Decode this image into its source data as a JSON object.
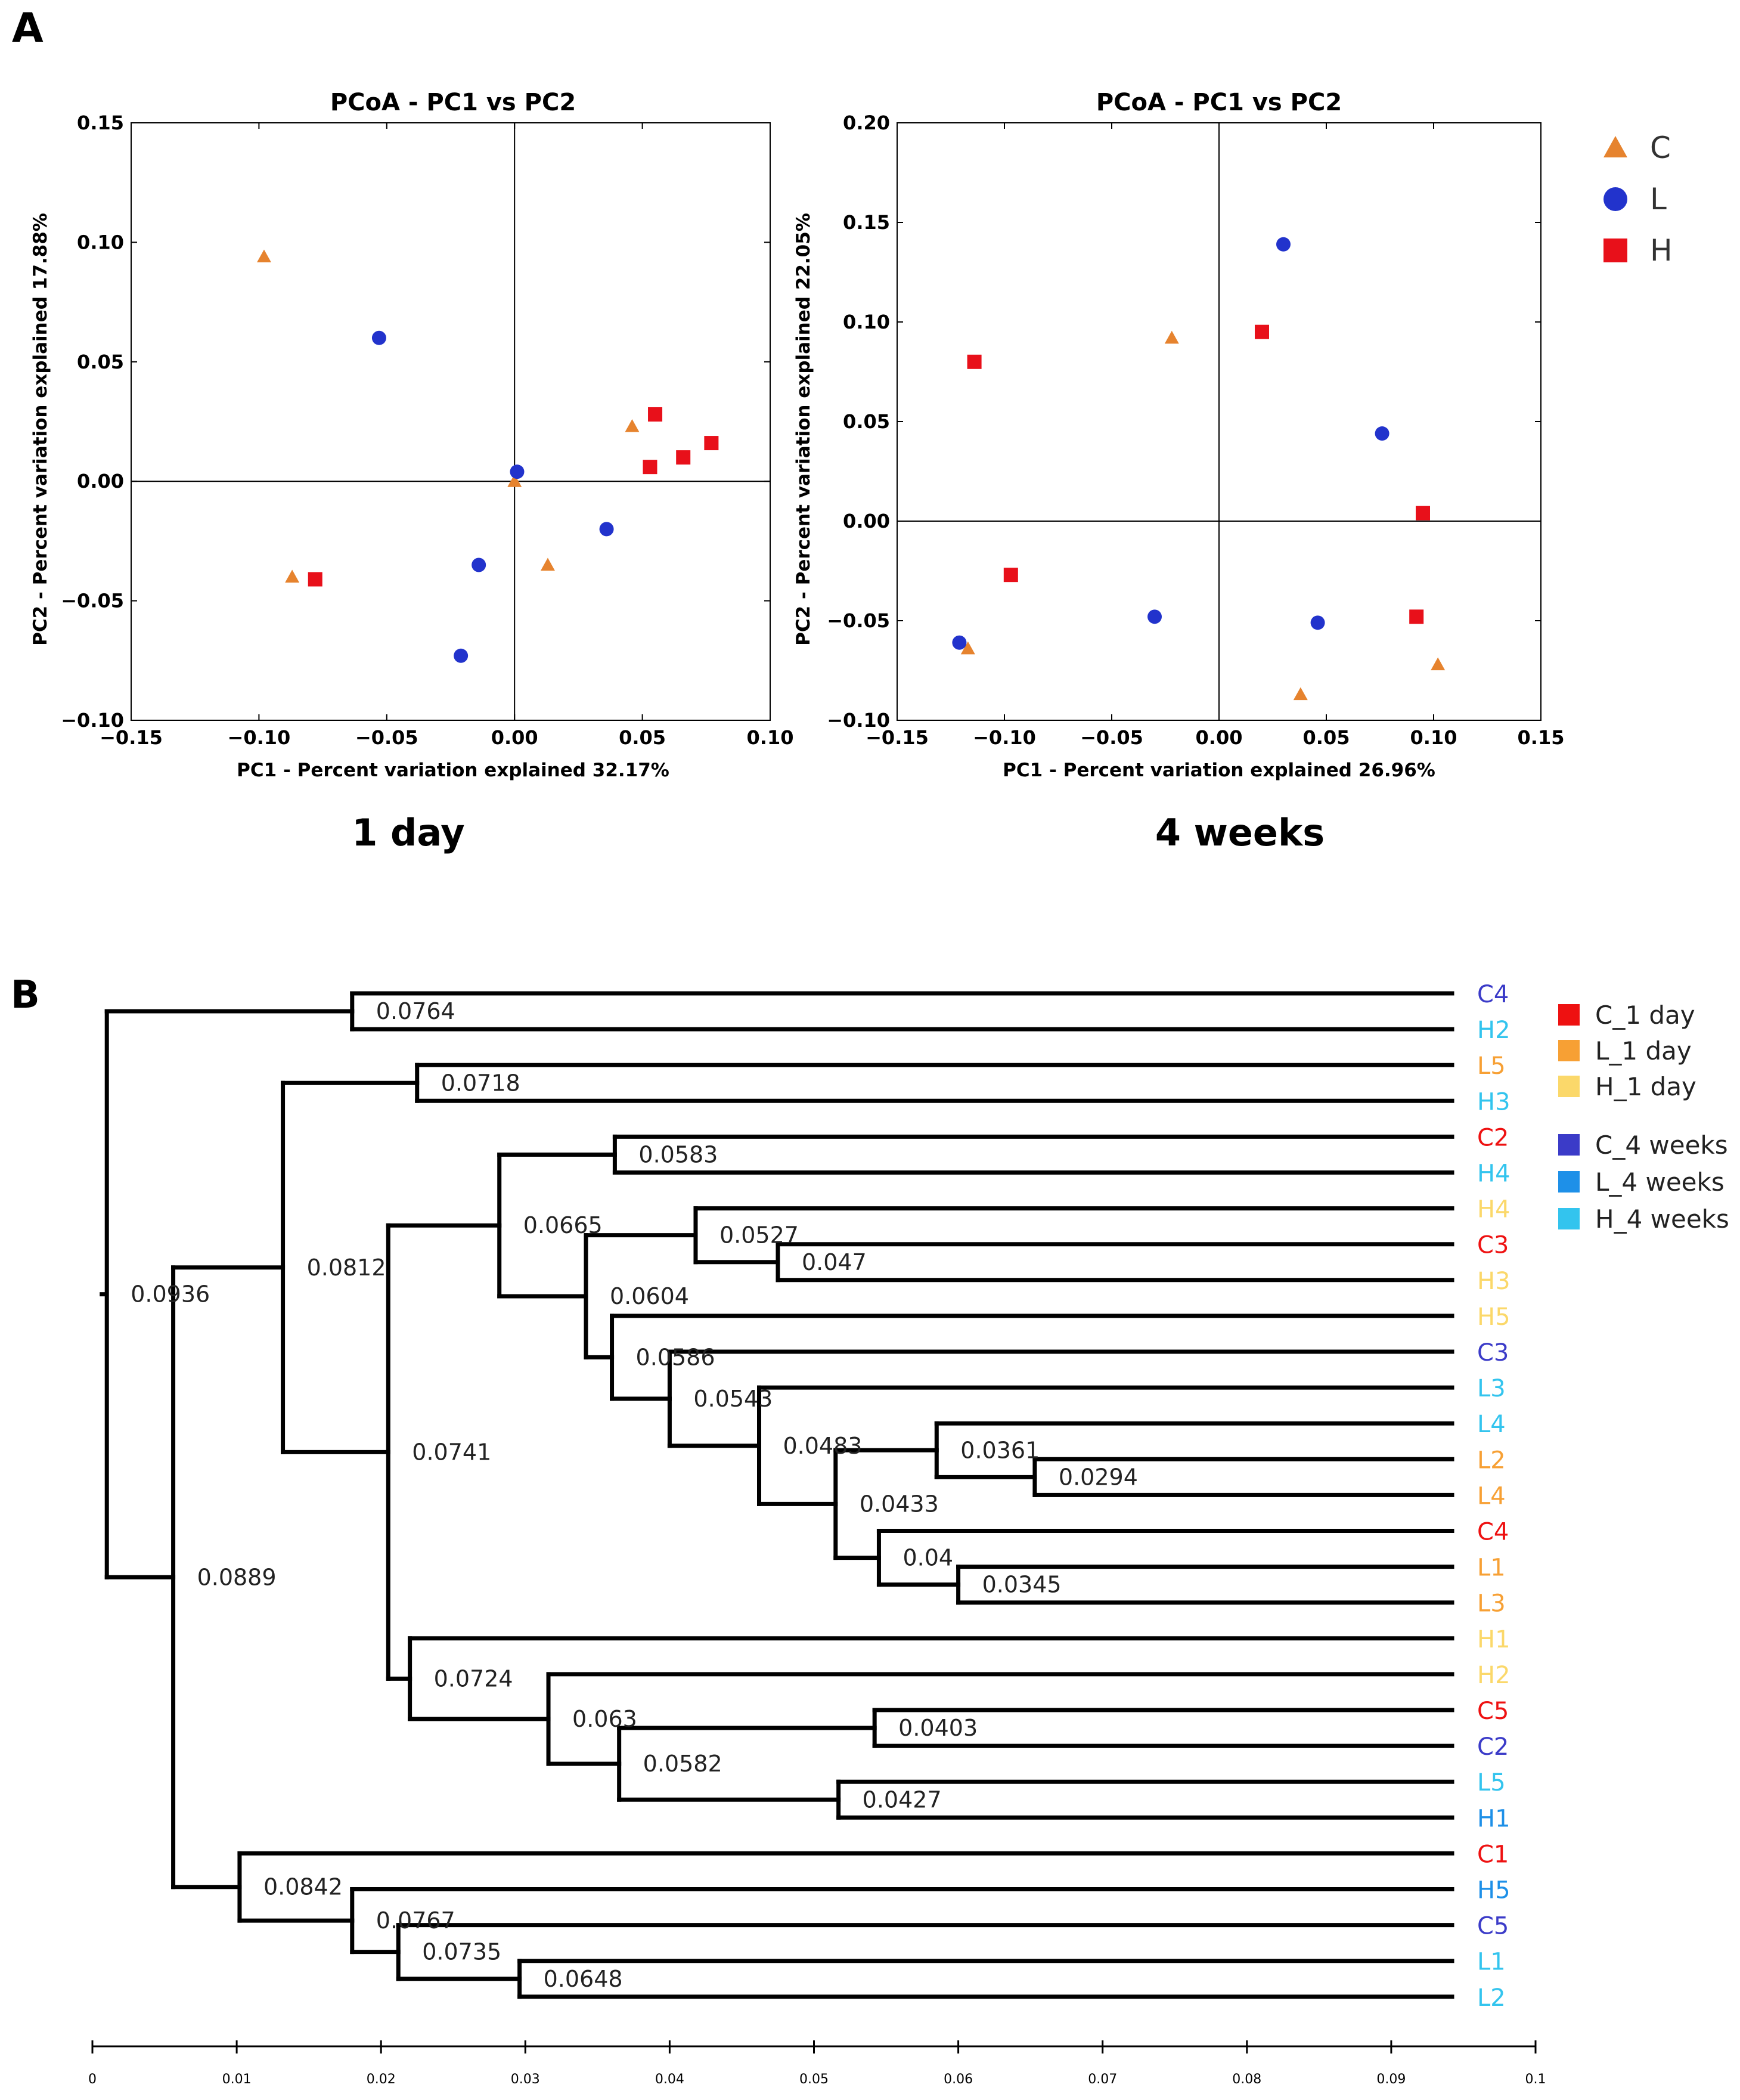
{
  "panel_a": {
    "label": "A",
    "legend": [
      {
        "name": "C",
        "shape": "triangle",
        "color": "#E6832E"
      },
      {
        "name": "L",
        "shape": "circle",
        "color": "#2233CC"
      },
      {
        "name": "H",
        "shape": "square",
        "color": "#E8101A"
      }
    ]
  },
  "panel_b": {
    "label": "B",
    "legend": [
      {
        "name": "C_1 day",
        "color": "#EE1111"
      },
      {
        "name": "L_1 day",
        "color": "#F7A034"
      },
      {
        "name": "H_1 day",
        "color": "#FBD86A"
      },
      {
        "name": "C_4 weeks",
        "color": "#3B3BC8"
      },
      {
        "name": "L_4 weeks",
        "color": "#1E90E8"
      },
      {
        "name": "H_4 weeks",
        "color": "#33C4EE"
      }
    ]
  },
  "chart_data": [
    {
      "type": "scatter",
      "title": "PCoA - PC1 vs PC2",
      "caption": "1 day",
      "xlabel": "PC1 - Percent variation explained 32.17%",
      "ylabel": "PC2 - Percent variation explained 17.88%",
      "xlim": [
        -0.15,
        0.1
      ],
      "ylim": [
        -0.1,
        0.15
      ],
      "xticks": [
        "−0.15",
        "−0.10",
        "−0.05",
        "0.00",
        "0.05",
        "0.10"
      ],
      "yticks": [
        "−0.10",
        "−0.05",
        "0.00",
        "0.05",
        "0.10",
        "0.15"
      ],
      "series": [
        {
          "name": "C",
          "points": [
            [
              -0.098,
              0.094
            ],
            [
              0.046,
              0.023
            ],
            [
              0.0,
              0.0
            ],
            [
              -0.087,
              -0.04
            ],
            [
              0.013,
              -0.035
            ]
          ]
        },
        {
          "name": "L",
          "points": [
            [
              -0.053,
              0.06
            ],
            [
              0.001,
              0.004
            ],
            [
              0.036,
              -0.02
            ],
            [
              -0.014,
              -0.035
            ],
            [
              -0.021,
              -0.073
            ]
          ]
        },
        {
          "name": "H",
          "points": [
            [
              0.055,
              0.028
            ],
            [
              0.077,
              0.016
            ],
            [
              0.066,
              0.01
            ],
            [
              0.053,
              0.006
            ],
            [
              -0.078,
              -0.041
            ]
          ]
        }
      ]
    },
    {
      "type": "scatter",
      "title": "PCoA - PC1 vs PC2",
      "caption": "4 weeks",
      "xlabel": "PC1 - Percent variation explained 26.96%",
      "ylabel": "PC2 - Percent variation explained 22.05%",
      "xlim": [
        -0.15,
        0.15
      ],
      "ylim": [
        -0.1,
        0.2
      ],
      "xticks": [
        "−0.15",
        "−0.10",
        "−0.05",
        "0.00",
        "0.05",
        "0.10",
        "0.15"
      ],
      "yticks": [
        "−0.10",
        "−0.05",
        "0.00",
        "0.05",
        "0.10",
        "0.15",
        "0.20"
      ],
      "series": [
        {
          "name": "C",
          "points": [
            [
              -0.022,
              0.092
            ],
            [
              -0.117,
              -0.064
            ],
            [
              0.038,
              -0.087
            ],
            [
              0.102,
              -0.072
            ]
          ]
        },
        {
          "name": "L",
          "points": [
            [
              0.03,
              0.139
            ],
            [
              0.076,
              0.044
            ],
            [
              -0.121,
              -0.061
            ],
            [
              -0.03,
              -0.048
            ],
            [
              0.046,
              -0.051
            ]
          ]
        },
        {
          "name": "H",
          "points": [
            [
              -0.114,
              0.08
            ],
            [
              0.02,
              0.095
            ],
            [
              0.095,
              0.004
            ],
            [
              -0.097,
              -0.027
            ],
            [
              0.092,
              -0.048
            ]
          ]
        }
      ]
    },
    {
      "type": "dendrogram",
      "axis_ticks": [
        "0",
        "0.01",
        "0.02",
        "0.03",
        "0.04",
        "0.05",
        "0.06",
        "0.07",
        "0.08",
        "0.09",
        "0.1"
      ],
      "xlim": [
        0,
        0.1
      ],
      "leaves": [
        {
          "label": "C4",
          "color": "#3B3BC8"
        },
        {
          "label": "H2",
          "color": "#33C4EE"
        },
        {
          "label": "L5",
          "color": "#F7A034"
        },
        {
          "label": "H3",
          "color": "#33C4EE"
        },
        {
          "label": "C2",
          "color": "#EE1111"
        },
        {
          "label": "H4",
          "color": "#33C4EE"
        },
        {
          "label": "H4",
          "color": "#FBD86A"
        },
        {
          "label": "C3",
          "color": "#EE1111"
        },
        {
          "label": "H3",
          "color": "#FBD86A"
        },
        {
          "label": "H5",
          "color": "#FBD86A"
        },
        {
          "label": "C3",
          "color": "#3B3BC8"
        },
        {
          "label": "L3",
          "color": "#33C4EE"
        },
        {
          "label": "L4",
          "color": "#33C4EE"
        },
        {
          "label": "L2",
          "color": "#F7A034"
        },
        {
          "label": "L4",
          "color": "#F7A034"
        },
        {
          "label": "C4",
          "color": "#EE1111"
        },
        {
          "label": "L1",
          "color": "#F7A034"
        },
        {
          "label": "L3",
          "color": "#F7A034"
        },
        {
          "label": "H1",
          "color": "#FBD86A"
        },
        {
          "label": "H2",
          "color": "#FBD86A"
        },
        {
          "label": "C5",
          "color": "#EE1111"
        },
        {
          "label": "C2",
          "color": "#3B3BC8"
        },
        {
          "label": "L5",
          "color": "#33C4EE"
        },
        {
          "label": "H1",
          "color": "#1E90E8"
        },
        {
          "label": "C1",
          "color": "#EE1111"
        },
        {
          "label": "H5",
          "color": "#1E90E8"
        },
        {
          "label": "C5",
          "color": "#3B3BC8"
        },
        {
          "label": "L1",
          "color": "#33C4EE"
        },
        {
          "label": "L2",
          "color": "#33C4EE"
        }
      ],
      "merges": [
        {
          "id": "m1",
          "a": "L0",
          "b": "L1",
          "x": 0.018,
          "label": "0.0764"
        },
        {
          "id": "m2",
          "a": "L2",
          "b": "L3",
          "x": 0.0225,
          "label": "0.0718"
        },
        {
          "id": "m3",
          "a": "L4",
          "b": "L5",
          "x": 0.0362,
          "label": "0.0583"
        },
        {
          "id": "m4",
          "a": "L7",
          "b": "L8",
          "x": 0.0475,
          "label": "0.047"
        },
        {
          "id": "m5",
          "a": "L6",
          "b": "m4",
          "x": 0.0418,
          "label": "0.0527"
        },
        {
          "id": "m6",
          "a": "L13",
          "b": "L14",
          "x": 0.0653,
          "label": "0.0294"
        },
        {
          "id": "m7",
          "a": "L12",
          "b": "m6",
          "x": 0.0585,
          "label": "0.0361"
        },
        {
          "id": "m8",
          "a": "L16",
          "b": "L17",
          "x": 0.06,
          "label": "0.0345"
        },
        {
          "id": "m9",
          "a": "L15",
          "b": "m8",
          "x": 0.0545,
          "label": "0.04"
        },
        {
          "id": "m10",
          "a": "m7",
          "b": "m9",
          "x": 0.0515,
          "label": "0.0433"
        },
        {
          "id": "m11",
          "a": "L11",
          "b": "m10",
          "x": 0.0462,
          "label": "0.0483"
        },
        {
          "id": "m12",
          "a": "L10",
          "b": "m11",
          "x": 0.04,
          "label": "0.0543"
        },
        {
          "id": "m13",
          "a": "L9",
          "b": "m12",
          "x": 0.036,
          "label": "0.0586"
        },
        {
          "id": "m14",
          "a": "m5",
          "b": "m13",
          "x": 0.0342,
          "label": "0.0604"
        },
        {
          "id": "m15",
          "a": "m3",
          "b": "m14",
          "x": 0.0282,
          "label": "0.0665"
        },
        {
          "id": "m16",
          "a": "L20",
          "b": "L21",
          "x": 0.0542,
          "label": "0.0403"
        },
        {
          "id": "m17",
          "a": "L22",
          "b": "L23",
          "x": 0.0517,
          "label": "0.0427"
        },
        {
          "id": "m18",
          "a": "m16",
          "b": "m17",
          "x": 0.0365,
          "label": "0.0582"
        },
        {
          "id": "m19",
          "a": "L19",
          "b": "m18",
          "x": 0.0316,
          "label": "0.063"
        },
        {
          "id": "m20",
          "a": "L18",
          "b": "m19",
          "x": 0.022,
          "label": "0.0724"
        },
        {
          "id": "m21",
          "a": "m15",
          "b": "m20",
          "x": 0.0205,
          "label": "0.0741"
        },
        {
          "id": "m22",
          "a": "m2",
          "b": "m21",
          "x": 0.0132,
          "label": "0.0812"
        },
        {
          "id": "m23",
          "a": "L27",
          "b": "L28",
          "x": 0.0296,
          "label": "0.0648"
        },
        {
          "id": "m24",
          "a": "L26",
          "b": "m23",
          "x": 0.0212,
          "label": "0.0735"
        },
        {
          "id": "m25",
          "a": "L25",
          "b": "m24",
          "x": 0.018,
          "label": "0.0767"
        },
        {
          "id": "m26",
          "a": "L24",
          "b": "m25",
          "x": 0.0102,
          "label": "0.0842"
        },
        {
          "id": "m27",
          "a": "m22",
          "b": "m26",
          "x": 0.0056,
          "label": "0.0889"
        },
        {
          "id": "m28",
          "a": "m1",
          "b": "m27",
          "x": 0.001,
          "label": "0.0936"
        }
      ]
    }
  ]
}
